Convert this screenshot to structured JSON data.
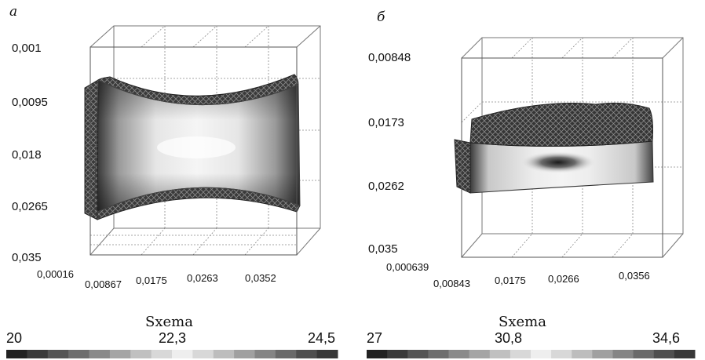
{
  "panels": [
    {
      "letter": "а",
      "y_ticks": [
        "0,001",
        "0,0095",
        "0,018",
        "0,0265",
        "0,035"
      ],
      "x_ticks": [
        "0,00016",
        "0,00867",
        "0,0175",
        "0,0263",
        "0,0352"
      ],
      "colorbar": {
        "title": "Sxema",
        "min": "20",
        "mid": "22,3",
        "max": "24,5"
      }
    },
    {
      "letter": "б",
      "y_ticks": [
        "0,00848",
        "0,0173",
        "0,0262",
        "0,035"
      ],
      "x_ticks": [
        "0,000639",
        "0,00843",
        "0,0175",
        "0,0266",
        "0,0356"
      ],
      "colorbar": {
        "title": "Sxema",
        "min": "27",
        "mid": "30,8",
        "max": "34,6"
      }
    }
  ],
  "colorbar_colors": [
    "#222222",
    "#3a3a3a",
    "#555555",
    "#6e6e6e",
    "#8a8a8a",
    "#a5a5a5",
    "#c0c0c0",
    "#d8d8d8",
    "#eeeeee",
    "#d8d8d8",
    "#bdbdbd",
    "#a0a0a0",
    "#858585",
    "#6a6a6a",
    "#4f4f4f",
    "#383838"
  ]
}
